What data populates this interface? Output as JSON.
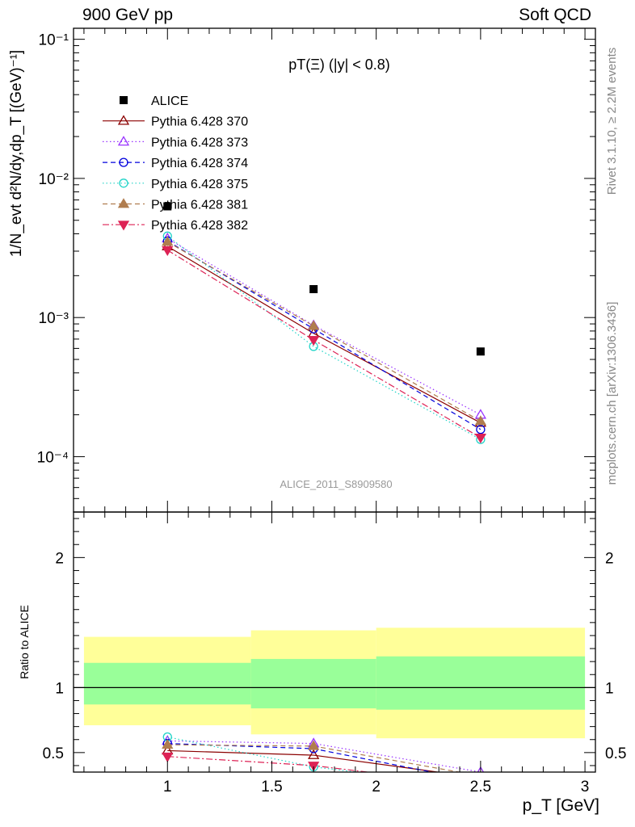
{
  "header": {
    "left": "900 GeV pp",
    "right": "Soft QCD"
  },
  "side_labels": {
    "rivet": "Rivet 3.1.10, ≥ 2.2M events",
    "source": "mcplots.cern.ch [arXiv:1306.3436]"
  },
  "chart_data": {
    "type": "line",
    "title": "pT(Ξ) (|y| < 0.8)",
    "analysis_id": "ALICE_2011_S8909580",
    "ylabel_top": "1/N_evt d²N/dy,dp_T [(GeV)⁻¹]",
    "ylabel_bottom": "Ratio to ALICE",
    "xlabel": "p_T [GeV]",
    "xlim": [
      0.55,
      3.05
    ],
    "ylim_top": [
      4e-05,
      0.12
    ],
    "ylim_bottom": [
      0.35,
      2.35
    ],
    "log_y_top": true,
    "legend_position": "top-left",
    "x_ticks": [
      1,
      1.5,
      2,
      2.5,
      3
    ],
    "x_tick_labels": [
      "1",
      "1.5",
      "2",
      "2.5",
      "3"
    ],
    "y_ticks_top": [
      "10⁻¹",
      "10⁻²",
      "10⁻³",
      "10⁻⁴"
    ],
    "y_ticks_bottom": [
      "2",
      "1",
      "0.5"
    ],
    "data": {
      "name": "ALICE",
      "x": [
        1.0,
        1.7,
        2.5
      ],
      "y": [
        0.0063,
        0.0016,
        0.00057
      ],
      "bins": [
        [
          0.6,
          1.4
        ],
        [
          1.4,
          2.0
        ],
        [
          2.0,
          3.0
        ]
      ],
      "band_inner": [
        [
          0.87,
          1.19
        ],
        [
          0.84,
          1.22
        ],
        [
          0.83,
          1.24
        ]
      ],
      "band_outer": [
        [
          0.71,
          1.39
        ],
        [
          0.64,
          1.44
        ],
        [
          0.61,
          1.46
        ]
      ]
    },
    "series": [
      {
        "name": "Pythia 6.428 370",
        "color": "#8b0000",
        "dash": "",
        "marker": "triangle-up-open",
        "x": [
          1.0,
          1.7,
          2.5
        ],
        "y": [
          0.00325,
          0.00077,
          0.000175
        ],
        "ratio": [
          0.515,
          0.48,
          0.305
        ]
      },
      {
        "name": "Pythia 6.428 373",
        "color": "#9933ff",
        "dash": "1.5,3",
        "marker": "triangle-up-open",
        "x": [
          1.0,
          1.7,
          2.5
        ],
        "y": [
          0.0037,
          0.00088,
          0.0002
        ],
        "ratio": [
          0.59,
          0.57,
          0.35
        ]
      },
      {
        "name": "Pythia 6.428 374",
        "color": "#0000dd",
        "dash": "6,4",
        "marker": "circle-open",
        "x": [
          1.0,
          1.7,
          2.5
        ],
        "y": [
          0.00355,
          0.00083,
          0.000157
        ],
        "ratio": [
          0.57,
          0.53,
          0.275
        ]
      },
      {
        "name": "Pythia 6.428 375",
        "color": "#22d4c8",
        "dash": "1.5,3",
        "marker": "circle-open",
        "x": [
          1.0,
          1.7,
          2.5
        ],
        "y": [
          0.00385,
          0.00062,
          0.000133
        ],
        "ratio": [
          0.62,
          0.39,
          0.235
        ]
      },
      {
        "name": "Pythia 6.428 381",
        "color": "#b07d4f",
        "dash": "6,4",
        "marker": "triangle-up-filled",
        "x": [
          1.0,
          1.7,
          2.5
        ],
        "y": [
          0.0035,
          0.00087,
          0.00018
        ],
        "ratio": [
          0.56,
          0.55,
          0.32
        ]
      },
      {
        "name": "Pythia 6.428 382",
        "color": "#dd2255",
        "dash": "8,3,2,3",
        "marker": "triangle-down-filled",
        "x": [
          1.0,
          1.7,
          2.5
        ],
        "y": [
          0.00305,
          0.00069,
          0.000137
        ],
        "ratio": [
          0.47,
          0.4,
          0.245
        ]
      }
    ]
  }
}
